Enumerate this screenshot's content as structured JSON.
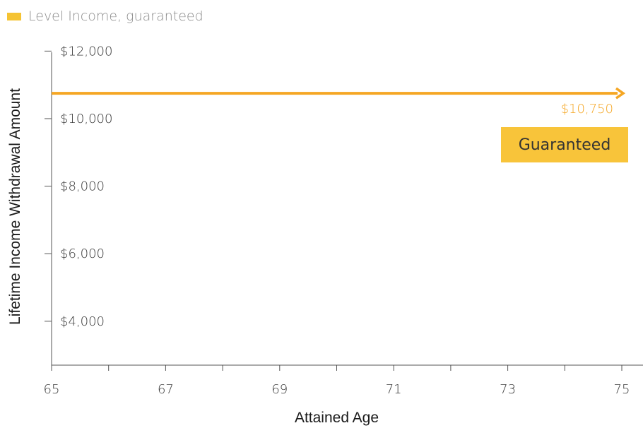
{
  "legend": {
    "label": "Level Income, guaranteed",
    "color": "#f5c333"
  },
  "badge": {
    "label": "Guaranteed",
    "color": "#f8c43a"
  },
  "chart_data": {
    "type": "line",
    "xlabel": "Attained Age",
    "ylabel": "Lifetime Income Withdrawal Amount",
    "x_ticks": [
      "65",
      "67",
      "69",
      "71",
      "73",
      "75"
    ],
    "y_ticks": [
      "$12,000",
      "$10,000",
      "$8,000",
      "$6,000",
      "$4,000"
    ],
    "y_tick_values": [
      12000,
      10000,
      8000,
      6000,
      4000
    ],
    "xlim": [
      65,
      75
    ],
    "ylim": [
      2700,
      12300
    ],
    "grid": false,
    "series": [
      {
        "name": "Level Income, guaranteed",
        "color": "#f5a623",
        "x": [
          65,
          75
        ],
        "values": [
          10750,
          10750
        ]
      }
    ],
    "annotations": [
      {
        "text": "$10,750",
        "x": 75,
        "y": 10750,
        "color": "#f5a623"
      }
    ]
  }
}
